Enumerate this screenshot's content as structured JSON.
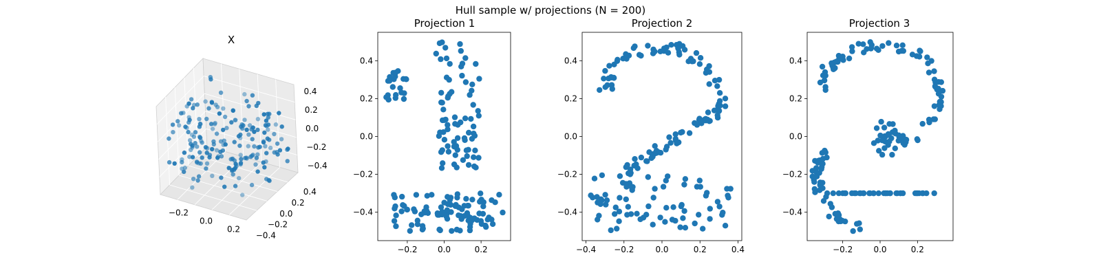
{
  "figure": {
    "suptitle": "Hull sample w/ projections (N = 200)"
  },
  "chart_data": [
    {
      "type": "scatter3d",
      "title": "X",
      "color": "#1f77b4",
      "x_ticks": [
        "−0.2",
        "0.0",
        "0.2"
      ],
      "y_ticks": [
        "−0.4",
        "−0.2",
        "0.0",
        "0.2",
        "0.4"
      ],
      "z_ticks": [
        "−0.4",
        "−0.2",
        "0.0",
        "0.2",
        "0.4"
      ],
      "xlim": [
        -0.35,
        0.35
      ],
      "ylim": [
        -0.4,
        0.4
      ],
      "zlim": [
        -0.5,
        0.5
      ]
    },
    {
      "type": "scatter",
      "title": "Projection 1",
      "shape": "1",
      "color": "#1f77b4",
      "xlim": [
        -0.36,
        0.36
      ],
      "ylim": [
        -0.55,
        0.55
      ],
      "x_ticks": [
        -0.2,
        0.0,
        0.2
      ],
      "y_ticks": [
        -0.4,
        -0.2,
        0.0,
        0.2,
        0.4
      ],
      "x_tick_labels": [
        "−0.2",
        "0.0",
        "0.2"
      ],
      "y_tick_labels": [
        "−0.4",
        "−0.2",
        "0.0",
        "0.2",
        "0.4"
      ]
    },
    {
      "type": "scatter",
      "title": "Projection 2",
      "shape": "2",
      "color": "#1f77b4",
      "xlim": [
        -0.42,
        0.42
      ],
      "ylim": [
        -0.55,
        0.55
      ],
      "x_ticks": [
        -0.4,
        -0.2,
        0.0,
        0.2,
        0.4
      ],
      "y_ticks": [
        -0.4,
        -0.2,
        0.0,
        0.2,
        0.4
      ],
      "x_tick_labels": [
        "−0.4",
        "−0.2",
        "0.0",
        "0.2",
        "0.4"
      ],
      "y_tick_labels": [
        "−0.4",
        "−0.2",
        "0.0",
        "0.2",
        "0.4"
      ]
    },
    {
      "type": "scatter",
      "title": "Projection 3",
      "shape": "3",
      "color": "#1f77b4",
      "xlim": [
        -0.39,
        0.39
      ],
      "ylim": [
        -0.55,
        0.55
      ],
      "x_ticks": [
        -0.2,
        0.0,
        0.2
      ],
      "y_ticks": [
        -0.4,
        -0.2,
        0.0,
        0.2,
        0.4
      ],
      "x_tick_labels": [
        "−0.2",
        "0.0",
        "0.2"
      ],
      "y_tick_labels": [
        "−0.4",
        "−0.2",
        "0.0",
        "0.2",
        "0.4"
      ]
    }
  ]
}
